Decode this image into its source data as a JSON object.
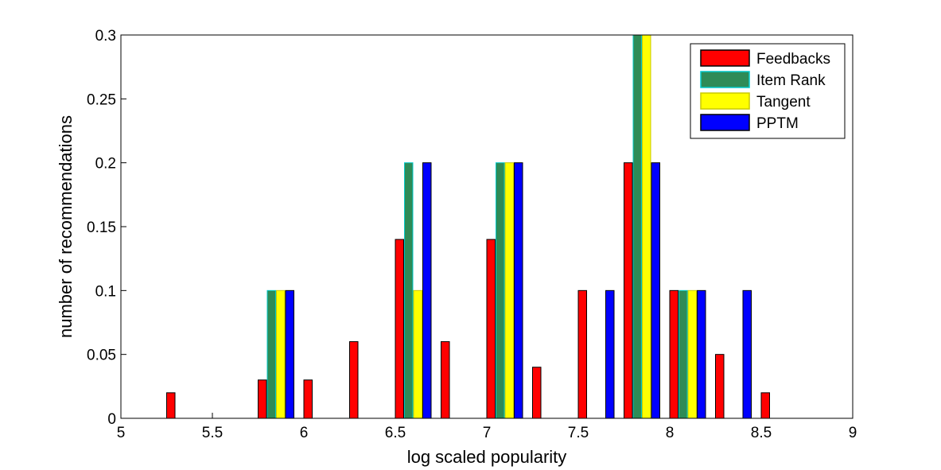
{
  "chart_data": {
    "type": "bar",
    "xlabel": "log scaled popularity",
    "ylabel": "number of recommendations",
    "xlim": [
      5,
      9
    ],
    "ylim": [
      0,
      0.3
    ],
    "xticks": [
      "5",
      "5.5",
      "6",
      "6.5",
      "7",
      "7.5",
      "8",
      "8.5",
      "9"
    ],
    "yticks": [
      "0",
      "0.05",
      "0.1",
      "0.15",
      "0.2",
      "0.25",
      "0.3"
    ],
    "x": [
      5.1,
      5.35,
      5.6,
      5.85,
      6.1,
      6.35,
      6.6,
      6.85,
      7.1,
      7.35,
      7.6,
      7.85,
      8.1,
      8.35,
      8.6,
      8.85
    ],
    "series": [
      {
        "name": "Feedbacks",
        "color": "#ff0000",
        "edge": "#000000",
        "values": [
          0,
          0.02,
          0,
          0.03,
          0.03,
          0.06,
          0.14,
          0.06,
          0.14,
          0.04,
          0.1,
          0.2,
          0.1,
          0.05,
          0.02,
          0
        ]
      },
      {
        "name": "Item Rank",
        "color": "#2e8b57",
        "edge": "#00c8c8",
        "values": [
          0,
          0,
          0,
          0.1,
          0,
          0,
          0.2,
          0,
          0.2,
          0,
          0,
          0.3,
          0.1,
          0,
          0,
          0
        ]
      },
      {
        "name": "Tangent",
        "color": "#ffff00",
        "edge": "#c8c800",
        "values": [
          0,
          0,
          0,
          0.1,
          0,
          0,
          0.1,
          0,
          0.2,
          0,
          0,
          0.3,
          0.1,
          0,
          0,
          0
        ]
      },
      {
        "name": "PPTM",
        "color": "#0000ff",
        "edge": "#000000",
        "values": [
          0,
          0,
          0,
          0.1,
          0,
          0,
          0.2,
          0,
          0.2,
          0,
          0.1,
          0.2,
          0.1,
          0.1,
          0,
          0
        ]
      }
    ],
    "legend": "top-right",
    "grid": false
  }
}
